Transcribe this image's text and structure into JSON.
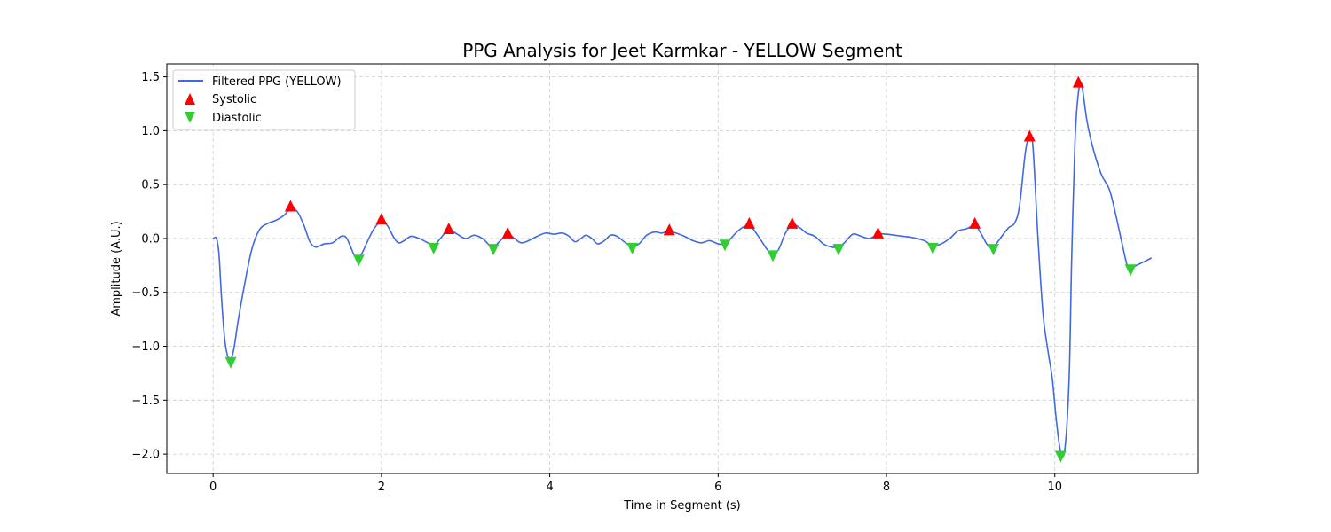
{
  "chart_data": {
    "type": "line",
    "title": "PPG Analysis for Jeet Karmkar - YELLOW Segment",
    "xlabel": "Time in Segment (s)",
    "ylabel": "Amplitude (A.U.)",
    "xlim": [
      -0.55,
      11.7
    ],
    "ylim": [
      -2.18,
      1.62
    ],
    "xticks": [
      0,
      2,
      4,
      6,
      8,
      10
    ],
    "xtick_labels": [
      "0",
      "2",
      "4",
      "6",
      "8",
      "10"
    ],
    "yticks": [
      1.5,
      1.0,
      0.5,
      0.0,
      -0.5,
      -1.0,
      -1.5,
      -2.0
    ],
    "ytick_labels": [
      "1.5",
      "1.0",
      "0.5",
      "0.0",
      "−0.5",
      "−1.0",
      "−1.5",
      "−2.0"
    ],
    "grid": true,
    "legend_position": "top-left",
    "colors": {
      "line": "#4169e1",
      "systolic": "#ff0000",
      "diastolic": "#32cd32"
    },
    "series": [
      {
        "name": "Filtered PPG (YELLOW)",
        "kind": "line",
        "points": [
          [
            0.0,
            0.0
          ],
          [
            0.04,
            0.0
          ],
          [
            0.07,
            -0.15
          ],
          [
            0.1,
            -0.55
          ],
          [
            0.14,
            -0.95
          ],
          [
            0.19,
            -1.12
          ],
          [
            0.24,
            -1.05
          ],
          [
            0.3,
            -0.75
          ],
          [
            0.38,
            -0.4
          ],
          [
            0.46,
            -0.1
          ],
          [
            0.55,
            0.08
          ],
          [
            0.65,
            0.14
          ],
          [
            0.75,
            0.17
          ],
          [
            0.85,
            0.22
          ],
          [
            0.92,
            0.28
          ],
          [
            1.0,
            0.25
          ],
          [
            1.08,
            0.12
          ],
          [
            1.15,
            -0.03
          ],
          [
            1.22,
            -0.08
          ],
          [
            1.32,
            -0.05
          ],
          [
            1.42,
            -0.04
          ],
          [
            1.52,
            0.02
          ],
          [
            1.58,
            0.01
          ],
          [
            1.63,
            -0.07
          ],
          [
            1.68,
            -0.16
          ],
          [
            1.73,
            -0.18
          ],
          [
            1.78,
            -0.12
          ],
          [
            1.85,
            0.0
          ],
          [
            1.92,
            0.1
          ],
          [
            2.0,
            0.16
          ],
          [
            2.07,
            0.12
          ],
          [
            2.14,
            0.02
          ],
          [
            2.2,
            -0.04
          ],
          [
            2.27,
            -0.02
          ],
          [
            2.35,
            0.02
          ],
          [
            2.45,
            0.0
          ],
          [
            2.55,
            -0.04
          ],
          [
            2.62,
            -0.07
          ],
          [
            2.7,
            0.0
          ],
          [
            2.8,
            0.08
          ],
          [
            2.9,
            0.04
          ],
          [
            3.0,
            0.0
          ],
          [
            3.1,
            0.03
          ],
          [
            3.2,
            0.0
          ],
          [
            3.28,
            -0.06
          ],
          [
            3.33,
            -0.08
          ],
          [
            3.4,
            -0.03
          ],
          [
            3.5,
            0.04
          ],
          [
            3.58,
            0.0
          ],
          [
            3.66,
            -0.04
          ],
          [
            3.75,
            -0.02
          ],
          [
            3.85,
            0.02
          ],
          [
            3.95,
            0.05
          ],
          [
            4.05,
            0.04
          ],
          [
            4.15,
            0.05
          ],
          [
            4.23,
            0.02
          ],
          [
            4.3,
            -0.03
          ],
          [
            4.37,
            0.0
          ],
          [
            4.43,
            0.03
          ],
          [
            4.5,
            0.0
          ],
          [
            4.57,
            -0.05
          ],
          [
            4.65,
            -0.02
          ],
          [
            4.72,
            0.03
          ],
          [
            4.8,
            0.02
          ],
          [
            4.9,
            -0.04
          ],
          [
            4.98,
            -0.07
          ],
          [
            5.06,
            -0.05
          ],
          [
            5.15,
            0.03
          ],
          [
            5.25,
            0.06
          ],
          [
            5.33,
            0.05
          ],
          [
            5.42,
            0.07
          ],
          [
            5.5,
            0.05
          ],
          [
            5.6,
            0.02
          ],
          [
            5.7,
            -0.02
          ],
          [
            5.8,
            -0.04
          ],
          [
            5.9,
            -0.02
          ],
          [
            6.0,
            -0.05
          ],
          [
            6.08,
            -0.05
          ],
          [
            6.15,
            0.0
          ],
          [
            6.25,
            0.08
          ],
          [
            6.37,
            0.12
          ],
          [
            6.47,
            0.03
          ],
          [
            6.58,
            -0.1
          ],
          [
            6.65,
            -0.15
          ],
          [
            6.72,
            -0.1
          ],
          [
            6.8,
            0.05
          ],
          [
            6.88,
            0.13
          ],
          [
            6.97,
            0.1
          ],
          [
            7.05,
            0.05
          ],
          [
            7.15,
            0.02
          ],
          [
            7.25,
            -0.05
          ],
          [
            7.35,
            -0.08
          ],
          [
            7.43,
            -0.08
          ],
          [
            7.5,
            -0.04
          ],
          [
            7.6,
            0.04
          ],
          [
            7.7,
            0.02
          ],
          [
            7.8,
            0.0
          ],
          [
            7.9,
            0.04
          ],
          [
            8.0,
            0.04
          ],
          [
            8.1,
            0.03
          ],
          [
            8.2,
            0.02
          ],
          [
            8.3,
            0.01
          ],
          [
            8.45,
            -0.02
          ],
          [
            8.55,
            -0.07
          ],
          [
            8.65,
            -0.05
          ],
          [
            8.75,
            0.0
          ],
          [
            8.85,
            0.07
          ],
          [
            8.95,
            0.09
          ],
          [
            9.05,
            0.12
          ],
          [
            9.12,
            0.05
          ],
          [
            9.2,
            -0.06
          ],
          [
            9.27,
            -0.08
          ],
          [
            9.35,
            0.0
          ],
          [
            9.45,
            0.1
          ],
          [
            9.52,
            0.14
          ],
          [
            9.58,
            0.3
          ],
          [
            9.65,
            0.8
          ],
          [
            9.7,
            0.95
          ],
          [
            9.74,
            0.85
          ],
          [
            9.8,
            0.0
          ],
          [
            9.86,
            -0.7
          ],
          [
            9.92,
            -1.05
          ],
          [
            9.97,
            -1.3
          ],
          [
            10.02,
            -1.7
          ],
          [
            10.07,
            -1.98
          ],
          [
            10.12,
            -1.95
          ],
          [
            10.17,
            -1.3
          ],
          [
            10.2,
            -0.2
          ],
          [
            10.24,
            0.9
          ],
          [
            10.28,
            1.35
          ],
          [
            10.32,
            1.42
          ],
          [
            10.38,
            1.1
          ],
          [
            10.45,
            0.85
          ],
          [
            10.55,
            0.6
          ],
          [
            10.65,
            0.45
          ],
          [
            10.73,
            0.2
          ],
          [
            10.8,
            -0.05
          ],
          [
            10.86,
            -0.25
          ],
          [
            10.9,
            -0.28
          ],
          [
            10.97,
            -0.25
          ],
          [
            11.05,
            -0.22
          ],
          [
            11.15,
            -0.18
          ]
        ]
      },
      {
        "name": "Systolic",
        "kind": "marker-up",
        "points": [
          [
            0.92,
            0.3
          ],
          [
            2.0,
            0.18
          ],
          [
            2.8,
            0.09
          ],
          [
            3.5,
            0.05
          ],
          [
            5.42,
            0.08
          ],
          [
            6.37,
            0.14
          ],
          [
            6.88,
            0.14
          ],
          [
            7.9,
            0.05
          ],
          [
            9.05,
            0.14
          ],
          [
            9.7,
            0.95
          ],
          [
            10.28,
            1.45
          ]
        ]
      },
      {
        "name": "Diastolic",
        "kind": "marker-down",
        "points": [
          [
            0.21,
            -1.15
          ],
          [
            1.73,
            -0.2
          ],
          [
            2.62,
            -0.09
          ],
          [
            3.33,
            -0.1
          ],
          [
            4.98,
            -0.09
          ],
          [
            6.08,
            -0.06
          ],
          [
            6.65,
            -0.16
          ],
          [
            7.43,
            -0.1
          ],
          [
            8.55,
            -0.09
          ],
          [
            9.27,
            -0.1
          ],
          [
            10.07,
            -2.02
          ],
          [
            10.9,
            -0.29
          ]
        ]
      }
    ]
  }
}
